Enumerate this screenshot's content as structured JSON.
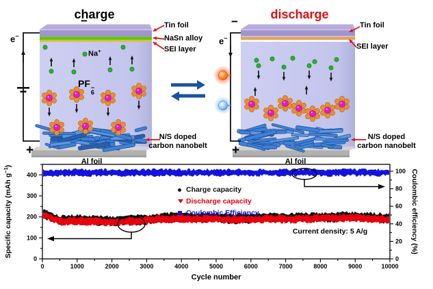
{
  "figure": {
    "charge_panel": {
      "title": "charge",
      "labels": {
        "tin_foil": "Tin foil",
        "nasn_alloy": "NaSn alloy",
        "sei_layer": "SEI layer",
        "na_base": "Na",
        "na_sup": "+",
        "pf6_base": "PF",
        "pf6_sub": "6",
        "pf6_sup": "−",
        "electron_base": "e",
        "electron_sup": "−",
        "terminal_minus": "−",
        "terminal_plus": "+",
        "al_foil": "Al foil",
        "nanobelt_line1": "N/S doped",
        "nanobelt_line2": "carbon nanobelt"
      }
    },
    "discharge_panel": {
      "title": "discharge",
      "labels": {
        "tin_foil": "Tin foil",
        "sei_layer": "SEI layer",
        "electron_base": "e",
        "electron_sup": "−",
        "terminal_minus": "−",
        "terminal_plus": "+",
        "al_foil": "Al foil",
        "nanobelt_line1": "N/S doped",
        "nanobelt_line2": "carbon nanobelt"
      }
    },
    "colors": {
      "title_discharge": "#dd1111",
      "tin_foil_top": "#b7acdb",
      "tin_foil_front": "#a294ce",
      "nasn_layer": "#58ca0b",
      "sei_charge": "#e8b84b",
      "sei_discharge": "#dfa55c",
      "electrolyte": "#c4c6ee",
      "al_foil": "#b0b0b0",
      "al_foil_top": "#d2d2d2",
      "nanobelt": "#3f81d6",
      "nanobelt_dark": "#2a5faa",
      "nanobelt_stroke": "#1b4b90",
      "na_ion": "#26b32c",
      "pf6_center": "#e818cc",
      "pf6_outer": "#ec8e2a",
      "label_arrow": "#dd1515",
      "eq_arrow": "#1753a4",
      "led_red": "#ff3000",
      "led_blue": "#2f8cff"
    }
  },
  "chart_data": {
    "type": "scatter",
    "xlabel": "Cycle number",
    "ylabel_left": {
      "main": "Specific capacity (mAh g",
      "sup": "−1",
      "close": ")"
    },
    "ylabel_right": "Coulombic efficiency (%)",
    "xlim": [
      0,
      10000
    ],
    "ylim_left": [
      0,
      450
    ],
    "ylim_right": [
      0,
      107
    ],
    "x_ticks": [
      0,
      1000,
      2000,
      3000,
      4000,
      5000,
      6000,
      7000,
      8000,
      9000,
      10000
    ],
    "x_minor_step": 500,
    "y_ticks_left": [
      0,
      100,
      200,
      300,
      400
    ],
    "y_left_minor_step": 50,
    "y_ticks_right": [
      0,
      20,
      40,
      60,
      80,
      100
    ],
    "y_right_minor_step": 10,
    "grid": false,
    "legend_position": "upper-center",
    "annotation": "Current density: 5 A/g",
    "legend": [
      {
        "label": "Charge capacity",
        "color": "#111111",
        "marker": "circle"
      },
      {
        "label": "Discharge capacity",
        "color": "#e8000d",
        "marker": "triangle-down"
      },
      {
        "label": "Coulombic Efficiency",
        "color": "#1313dd",
        "marker": "square"
      }
    ],
    "series": [
      {
        "name": "Charge capacity",
        "axis": "left",
        "color": "#111111",
        "x": [
          0,
          500,
          1000,
          1500,
          2000,
          2500,
          3000,
          3500,
          4000,
          4500,
          5000,
          5500,
          6000,
          6500,
          7000,
          7500,
          8000,
          8500,
          9000,
          9500,
          10000
        ],
        "y": [
          219,
          184,
          187,
          183,
          181,
          184,
          188,
          196,
          198,
          195,
          196,
          192,
          193,
          198,
          194,
          196,
          198,
          200,
          202,
          196,
          193
        ]
      },
      {
        "name": "Discharge capacity",
        "axis": "left",
        "color": "#e8000d",
        "x": [
          0,
          500,
          1000,
          1500,
          2000,
          2500,
          3000,
          3500,
          4000,
          4500,
          5000,
          5500,
          6000,
          6500,
          7000,
          7500,
          8000,
          8500,
          9000,
          9500,
          10000
        ],
        "y": [
          213,
          178,
          181,
          177,
          175,
          178,
          182,
          190,
          192,
          189,
          190,
          186,
          187,
          192,
          188,
          190,
          192,
          194,
          196,
          190,
          187
        ]
      },
      {
        "name": "Coulombic Efficiency",
        "axis": "right",
        "color": "#1313dd",
        "x": [
          0,
          500,
          1000,
          1500,
          2000,
          2500,
          3000,
          3500,
          4000,
          4500,
          5000,
          5500,
          6000,
          6500,
          7000,
          7500,
          8000,
          8500,
          9000,
          9500,
          10000
        ],
        "y": [
          97.8,
          98.3,
          98.4,
          98.2,
          98.4,
          98.3,
          98.4,
          98.5,
          98.4,
          98.5,
          98.4,
          98.3,
          98.5,
          98.4,
          98.5,
          98.4,
          98.5,
          98.4,
          98.5,
          98.4,
          98.5
        ]
      }
    ]
  }
}
